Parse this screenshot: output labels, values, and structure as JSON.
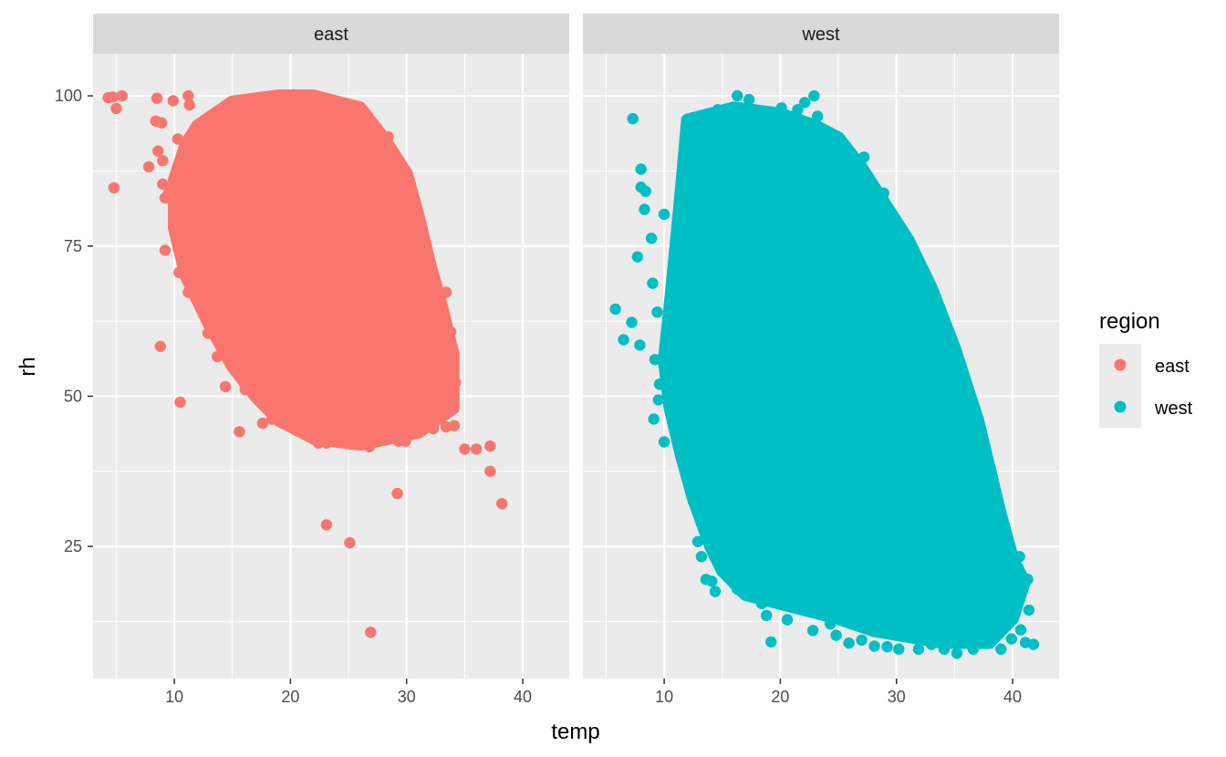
{
  "chart_data": {
    "type": "scatter",
    "xlabel": "temp",
    "ylabel": "rh",
    "xlim": [
      3,
      44
    ],
    "ylim": [
      3,
      107
    ],
    "x_ticks": [
      10,
      20,
      30,
      40
    ],
    "y_ticks": [
      25,
      50,
      75,
      100
    ],
    "x_tick_labels": [
      "10",
      "20",
      "30",
      "40"
    ],
    "y_tick_labels": [
      "25",
      "50",
      "75",
      "100"
    ],
    "grid": true,
    "facet_labels": [
      "east",
      "west"
    ],
    "legend": {
      "title": "region",
      "placement": "right",
      "entries": [
        {
          "label": "east",
          "color": "#F8766D"
        },
        {
          "label": "west",
          "color": "#00BFC4"
        }
      ]
    },
    "series": [
      {
        "name": "east",
        "color": "#F8766D",
        "cloud_outline": [
          [
            12,
            95
          ],
          [
            15,
            99
          ],
          [
            19,
            100
          ],
          [
            22,
            100
          ],
          [
            26,
            98
          ],
          [
            28,
            93
          ],
          [
            30,
            87
          ],
          [
            31,
            80
          ],
          [
            32,
            72
          ],
          [
            33,
            65
          ],
          [
            34,
            57
          ],
          [
            34,
            48
          ],
          [
            31,
            44
          ],
          [
            26,
            42
          ],
          [
            22,
            43
          ],
          [
            19,
            46
          ],
          [
            17,
            50
          ],
          [
            15,
            55
          ],
          [
            13,
            62
          ],
          [
            11,
            70
          ],
          [
            10,
            78
          ],
          [
            10,
            86
          ],
          [
            11,
            92
          ]
        ],
        "points": [
          [
            4.3,
            99.7
          ],
          [
            4.7,
            99.8
          ],
          [
            5.5,
            100
          ],
          [
            4.8,
            84.7
          ],
          [
            5.0,
            97.9
          ],
          [
            7.8,
            88.2
          ],
          [
            8.4,
            95.8
          ],
          [
            8.5,
            99.6
          ],
          [
            8.6,
            90.8
          ],
          [
            9.0,
            89.2
          ],
          [
            9.2,
            83
          ],
          [
            9.0,
            85.3
          ],
          [
            8.9,
            95.5
          ],
          [
            9.5,
            83.8
          ],
          [
            9.2,
            74.3
          ],
          [
            9.9,
            99.2
          ],
          [
            10.3,
            92.8
          ],
          [
            10.1,
            86.4
          ],
          [
            10.4,
            80.3
          ],
          [
            10.3,
            77.2
          ],
          [
            10.4,
            70.6
          ],
          [
            10.5,
            49
          ],
          [
            8.8,
            58.3
          ],
          [
            11.2,
            67.3
          ],
          [
            11.2,
            100
          ],
          [
            11.3,
            98.5
          ],
          [
            11.6,
            72.4
          ],
          [
            12.4,
            65.2
          ],
          [
            12.9,
            60.5
          ],
          [
            13.1,
            68.9
          ],
          [
            13.7,
            56.6
          ],
          [
            14.4,
            51.6
          ],
          [
            15.6,
            44.1
          ],
          [
            16.1,
            51.1
          ],
          [
            17.6,
            45.5
          ],
          [
            18.4,
            46.2
          ],
          [
            19.9,
            46.2
          ],
          [
            20.5,
            45
          ],
          [
            21.4,
            43.6
          ],
          [
            22.4,
            42.2
          ],
          [
            23.1,
            42.2
          ],
          [
            24.1,
            42.3
          ],
          [
            25.4,
            42.6
          ],
          [
            26.8,
            41.6
          ],
          [
            29.3,
            42.5
          ],
          [
            29.9,
            42.5
          ],
          [
            30.1,
            45.3
          ],
          [
            31.0,
            48.2
          ],
          [
            32.3,
            44.6
          ],
          [
            33.4,
            44.9
          ],
          [
            34.1,
            45.1
          ],
          [
            34.2,
            52.3
          ],
          [
            33.1,
            57.9
          ],
          [
            33.8,
            60.7
          ],
          [
            33.4,
            67.3
          ],
          [
            30.8,
            75.5
          ],
          [
            30.1,
            82.1
          ],
          [
            28.4,
            93.2
          ],
          [
            27.3,
            94.4
          ],
          [
            25.7,
            97.2
          ],
          [
            24.0,
            99.0
          ],
          [
            35.0,
            41.2
          ],
          [
            36.0,
            41.2
          ],
          [
            37.2,
            41.7
          ],
          [
            37.2,
            37.5
          ],
          [
            38.2,
            32.1
          ],
          [
            29.2,
            33.8
          ],
          [
            23.1,
            28.6
          ],
          [
            25.1,
            25.6
          ],
          [
            26.9,
            10.7
          ]
        ]
      },
      {
        "name": "west",
        "color": "#00BFC4",
        "cloud_outline": [
          [
            12,
            96
          ],
          [
            16,
            98
          ],
          [
            20,
            97
          ],
          [
            23,
            95
          ],
          [
            25,
            93
          ],
          [
            27,
            88
          ],
          [
            29,
            82
          ],
          [
            31,
            76
          ],
          [
            33,
            68
          ],
          [
            35,
            58
          ],
          [
            36,
            52
          ],
          [
            37,
            46
          ],
          [
            38,
            38
          ],
          [
            39,
            30
          ],
          [
            40,
            23
          ],
          [
            41,
            19
          ],
          [
            40,
            13
          ],
          [
            38,
            9
          ],
          [
            34,
            9
          ],
          [
            31,
            10
          ],
          [
            28,
            11
          ],
          [
            25,
            13
          ],
          [
            23,
            14
          ],
          [
            21,
            15
          ],
          [
            19,
            16
          ],
          [
            17,
            17
          ],
          [
            15,
            21
          ],
          [
            14,
            25
          ],
          [
            12.5,
            33
          ],
          [
            11.5,
            40
          ],
          [
            10.5,
            48
          ],
          [
            10,
            56
          ],
          [
            10.5,
            65
          ],
          [
            11,
            75
          ],
          [
            11.5,
            85
          ]
        ],
        "points": [
          [
            7.3,
            96.2
          ],
          [
            5.8,
            64.5
          ],
          [
            6.5,
            59.4
          ],
          [
            7.2,
            62.3
          ],
          [
            7.9,
            58.5
          ],
          [
            7.7,
            73.2
          ],
          [
            8.0,
            84.8
          ],
          [
            8.3,
            81.1
          ],
          [
            8.0,
            87.8
          ],
          [
            8.4,
            84.1
          ],
          [
            8.9,
            76.3
          ],
          [
            9.0,
            68.8
          ],
          [
            9.4,
            64
          ],
          [
            9.2,
            56.1
          ],
          [
            9.6,
            52
          ],
          [
            9.1,
            46.2
          ],
          [
            9.5,
            49.4
          ],
          [
            10.0,
            42.4
          ],
          [
            10.0,
            80.3
          ],
          [
            12.5,
            32.5
          ],
          [
            12.9,
            25.8
          ],
          [
            13.2,
            23.3
          ],
          [
            13.6,
            19.5
          ],
          [
            14.1,
            19.2
          ],
          [
            14.4,
            17.5
          ],
          [
            15.0,
            20.8
          ],
          [
            15.8,
            19.8
          ],
          [
            16.3,
            17.9
          ],
          [
            17.2,
            20.0
          ],
          [
            18.4,
            15.5
          ],
          [
            18.8,
            13.5
          ],
          [
            19.2,
            9.1
          ],
          [
            20.6,
            12.8
          ],
          [
            22.8,
            11
          ],
          [
            24.3,
            12.1
          ],
          [
            24.8,
            10.2
          ],
          [
            25.9,
            8.9
          ],
          [
            27.0,
            9.4
          ],
          [
            28.1,
            8.4
          ],
          [
            29.2,
            8.3
          ],
          [
            30.2,
            7.9
          ],
          [
            31.9,
            7.9
          ],
          [
            33.0,
            8.7
          ],
          [
            34.1,
            7.9
          ],
          [
            35.2,
            7.2
          ],
          [
            36.6,
            7.9
          ],
          [
            37.5,
            8.9
          ],
          [
            39.0,
            7.9
          ],
          [
            39.9,
            9.6
          ],
          [
            40.7,
            11.1
          ],
          [
            41.1,
            9.0
          ],
          [
            41.8,
            8.7
          ],
          [
            41.4,
            14.4
          ],
          [
            41.3,
            19.5
          ],
          [
            40.6,
            23.3
          ],
          [
            39.5,
            24.5
          ],
          [
            38.5,
            28.3
          ],
          [
            37.5,
            35.4
          ],
          [
            36.4,
            42.4
          ],
          [
            35.2,
            48.6
          ],
          [
            33.6,
            57.6
          ],
          [
            32.4,
            66.4
          ],
          [
            31.2,
            74.3
          ],
          [
            28.9,
            83.8
          ],
          [
            27.2,
            89.8
          ],
          [
            25.3,
            92.3
          ],
          [
            23.2,
            96.6
          ],
          [
            21.5,
            97.7
          ],
          [
            20.1,
            98.0
          ],
          [
            22.1,
            98.9
          ],
          [
            22.9,
            100
          ],
          [
            17.3,
            99.4
          ],
          [
            16.3,
            100
          ],
          [
            14.6,
            97.7
          ]
        ]
      }
    ]
  }
}
